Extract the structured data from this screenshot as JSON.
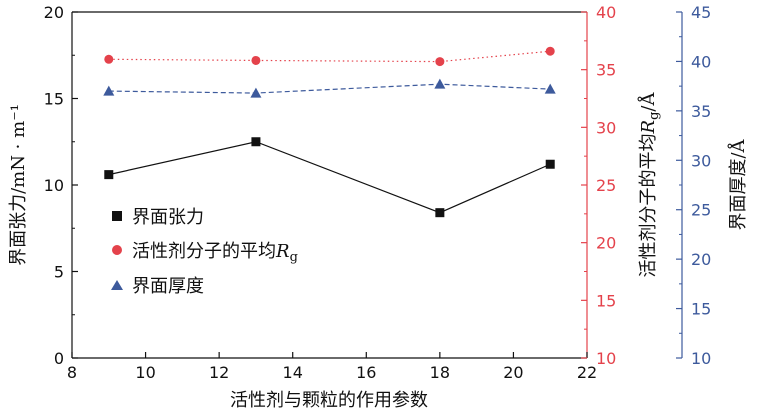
{
  "chart_data": {
    "type": "line",
    "x": [
      9,
      13,
      18,
      21
    ],
    "xlabel": "活性剂与颗粒的作用参数",
    "xlim": [
      8,
      22
    ],
    "xticks": [
      "8",
      "10",
      "12",
      "14",
      "16",
      "18",
      "20",
      "22"
    ],
    "axes": {
      "left": {
        "label": "界面张力/mN · m⁻¹",
        "ylim": [
          0,
          20
        ],
        "ticks": [
          "0",
          "5",
          "10",
          "15",
          "20"
        ],
        "color": "#111111"
      },
      "right1": {
        "label_main": "活性剂分子的平均",
        "label_sym": "R",
        "label_sub": "g",
        "label_tail": "/Å",
        "ylim": [
          10,
          40
        ],
        "ticks": [
          "10",
          "15",
          "20",
          "25",
          "30",
          "35",
          "40"
        ],
        "color": "#e4424b"
      },
      "right2": {
        "label": "界面厚度/Å",
        "ylim": [
          10,
          45
        ],
        "ticks": [
          "10",
          "15",
          "20",
          "25",
          "30",
          "35",
          "40",
          "45"
        ],
        "color": "#3d5a9c"
      }
    },
    "series": [
      {
        "name": "界面张力",
        "axis": "left",
        "values": [
          10.6,
          12.5,
          8.4,
          11.2
        ],
        "color": "#111111",
        "marker": "square",
        "line": "solid"
      },
      {
        "name": "活性剂分子的平均Rg",
        "name_main": "活性剂分子的平均",
        "name_sym": "R",
        "name_sub": "g",
        "axis": "right1",
        "values": [
          35.9,
          35.8,
          35.7,
          36.6
        ],
        "color": "#e4424b",
        "marker": "circle",
        "line": "dotted"
      },
      {
        "name": "界面厚度",
        "axis": "right2",
        "values": [
          37.0,
          36.8,
          37.7,
          37.2
        ],
        "color": "#3d5a9c",
        "marker": "triangle",
        "line": "dashed"
      }
    ],
    "legend_position": "center-left",
    "grid": false
  }
}
